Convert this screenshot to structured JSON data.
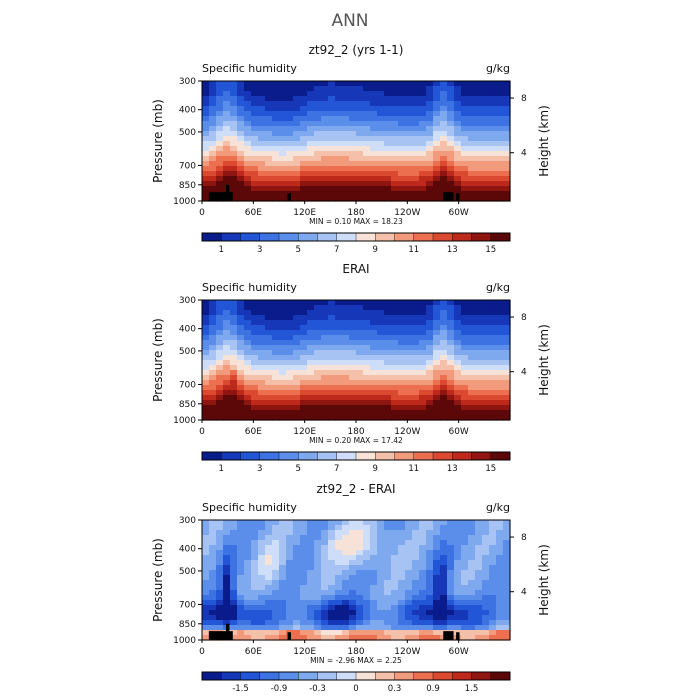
{
  "title": "ANN",
  "colorbar_colors": [
    "#0a1c8c",
    "#1638b8",
    "#2356d6",
    "#3d72e2",
    "#5b8dea",
    "#7fa9ef",
    "#a6c3f3",
    "#cfdef8",
    "#f7e2d8",
    "#f5c0aa",
    "#f29a7c",
    "#ec6f50",
    "#db4a30",
    "#bd2a1b",
    "#8e1510",
    "#5c0808"
  ],
  "panels": [
    {
      "id": "model",
      "title": "zt92_2 (yrs 1-1)",
      "left_label": "Specific humidity",
      "right_label": "g/kg",
      "min_max_text": "MIN =   0.10   MAX =  18.23",
      "cb_labels": [
        "1",
        "3",
        "5",
        "7",
        "9",
        "11",
        "13",
        "15"
      ]
    },
    {
      "id": "obs",
      "title": "ERAI",
      "left_label": "Specific humidity",
      "right_label": "g/kg",
      "min_max_text": "MIN =   0.20   MAX =  17.42",
      "cb_labels": [
        "1",
        "3",
        "5",
        "7",
        "9",
        "11",
        "13",
        "15"
      ]
    },
    {
      "id": "diff",
      "title": "zt92_2 - ERAI",
      "left_label": "Specific humidity",
      "right_label": "g/kg",
      "min_max_text": "MIN =  -2.96   MAX =   2.25",
      "cb_labels": [
        "-1.5",
        "-0.9",
        "-0.3",
        "0",
        "0.3",
        "0.9",
        "1.5"
      ]
    }
  ],
  "chart_data": {
    "type": "heatmap",
    "x_axis": {
      "ticks": [
        "0",
        "60E",
        "120E",
        "180",
        "120W",
        "60W"
      ],
      "lon_range": [
        0,
        360
      ]
    },
    "y_axis": {
      "label": "Pressure (mb)",
      "ticks": [
        "300",
        "400",
        "500",
        "700",
        "850",
        "1000"
      ],
      "pressure_values": [
        300,
        400,
        500,
        700,
        850,
        1000
      ],
      "range": [
        1000,
        300
      ],
      "scale": "log"
    },
    "y_axis_right": {
      "label": "Height (km)",
      "ticks": [
        "8",
        "4"
      ],
      "values": [
        8,
        4
      ]
    },
    "panels": [
      {
        "title": "zt92_2 (yrs 1-1)",
        "variable": "Specific humidity",
        "units": "g/kg",
        "min": 0.1,
        "max": 18.23,
        "levels": [
          1,
          2,
          3,
          4,
          5,
          6,
          7,
          8,
          9,
          10,
          11,
          12,
          13,
          14,
          15
        ]
      },
      {
        "title": "ERAI",
        "variable": "Specific humidity",
        "units": "g/kg",
        "min": 0.2,
        "max": 17.42,
        "levels": [
          1,
          2,
          3,
          4,
          5,
          6,
          7,
          8,
          9,
          10,
          11,
          12,
          13,
          14,
          15
        ]
      },
      {
        "title": "zt92_2 - ERAI",
        "variable": "Specific humidity",
        "units": "g/kg",
        "min": -2.96,
        "max": 2.25,
        "levels": [
          -1.8,
          -1.5,
          -1.2,
          -0.9,
          -0.6,
          -0.3,
          -0.1,
          0,
          0.1,
          0.3,
          0.6,
          0.9,
          1.2,
          1.5,
          1.8
        ]
      }
    ]
  }
}
